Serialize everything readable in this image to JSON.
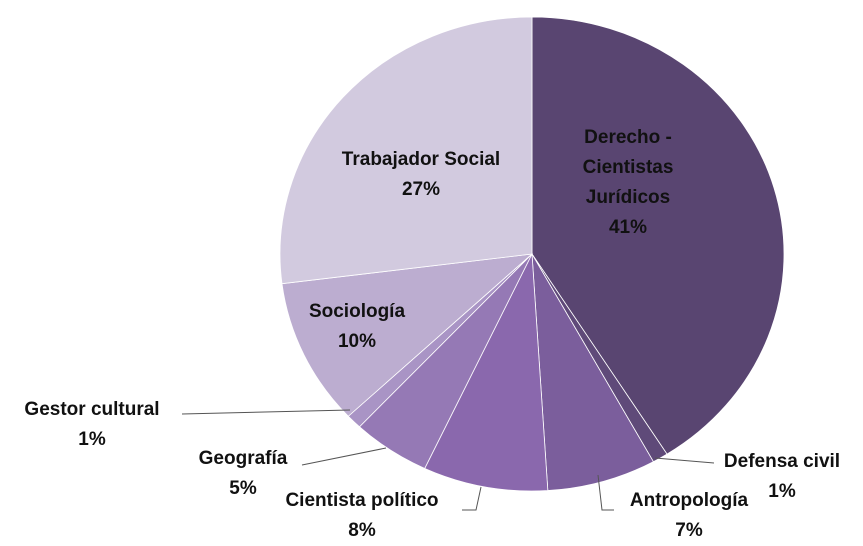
{
  "chart_data": {
    "type": "pie",
    "categories": [
      "Derecho - Cientistas Jurídicos",
      "Defensa civil",
      "Antropología",
      "Cientista político",
      "Geografía",
      "Gestor cultural",
      "Sociología",
      "Trabajador  Social"
    ],
    "values": [
      41,
      1,
      7,
      8,
      5,
      1,
      10,
      27
    ],
    "value_labels": [
      "41%",
      "1%",
      "7%",
      "8%",
      "5%",
      "1%",
      "10%",
      "27%"
    ],
    "colors": [
      "#594571",
      "#5f4a79",
      "#7b5e9c",
      "#8a68ad",
      "#9579b5",
      "#a994c5",
      "#bcadd0",
      "#d2cadf"
    ]
  }
}
